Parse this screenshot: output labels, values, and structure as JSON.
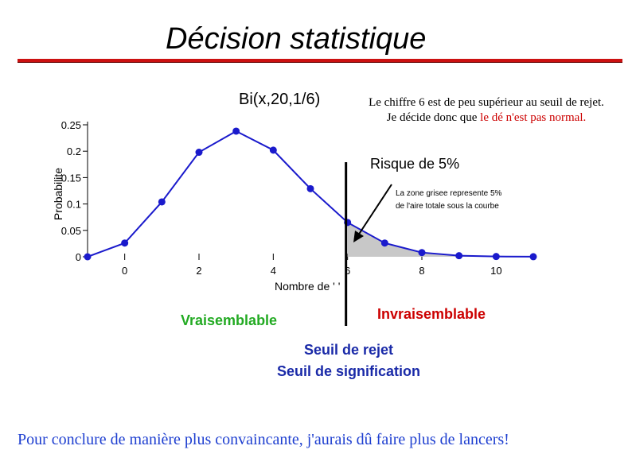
{
  "slide": {
    "title": "Décision statistique",
    "annotation_line1": "Le chiffre 6  est de peu supérieur au seuil de rejet.",
    "annotation_line2_prefix": "Je décide donc que ",
    "annotation_line2_red": "le dé n'est pas normal.",
    "footer": "Pour conclure de manière plus convaincante, j'aurais dû faire plus de lancers!"
  },
  "labels": {
    "risk": "Risque de 5%",
    "shaded_note_1": "La zone grisee represente 5%",
    "shaded_note_2": "de l'aire totale sous la courbe",
    "likely": "Vraisemblable",
    "unlikely": "Invraisemblable",
    "threshold_1": "Seuil de rejet",
    "threshold_2": "Seuil de signification"
  },
  "colors": {
    "series": "#1a1acc",
    "title_rule": "#cc1111",
    "likely": "#22aa22",
    "unlikely": "#cc0000",
    "threshold": "#1a2aa8",
    "shaded": "#c8c8c8",
    "footer": "#1e3fd0"
  },
  "chart_data": {
    "type": "line",
    "title": "Bi(x,20,1/6)",
    "xlabel": "Nombre de '  '",
    "ylabel": "Probabilite",
    "xlim": [
      -1,
      11
    ],
    "ylim": [
      0,
      0.25
    ],
    "x_ticks": [
      0,
      2,
      4,
      6,
      8,
      10
    ],
    "y_ticks": [
      0,
      0.05,
      0.1,
      0.15,
      0.2,
      0.25
    ],
    "x": [
      -1,
      0,
      1,
      2,
      3,
      4,
      5,
      6,
      7,
      8,
      9,
      10,
      11
    ],
    "y": [
      0,
      0.026,
      0.104,
      0.198,
      0.238,
      0.202,
      0.129,
      0.065,
      0.026,
      0.008,
      0.002,
      0.0005,
      0.0001
    ],
    "threshold_x": 6,
    "shaded_from_x": 6,
    "shaded_percent": 5
  }
}
